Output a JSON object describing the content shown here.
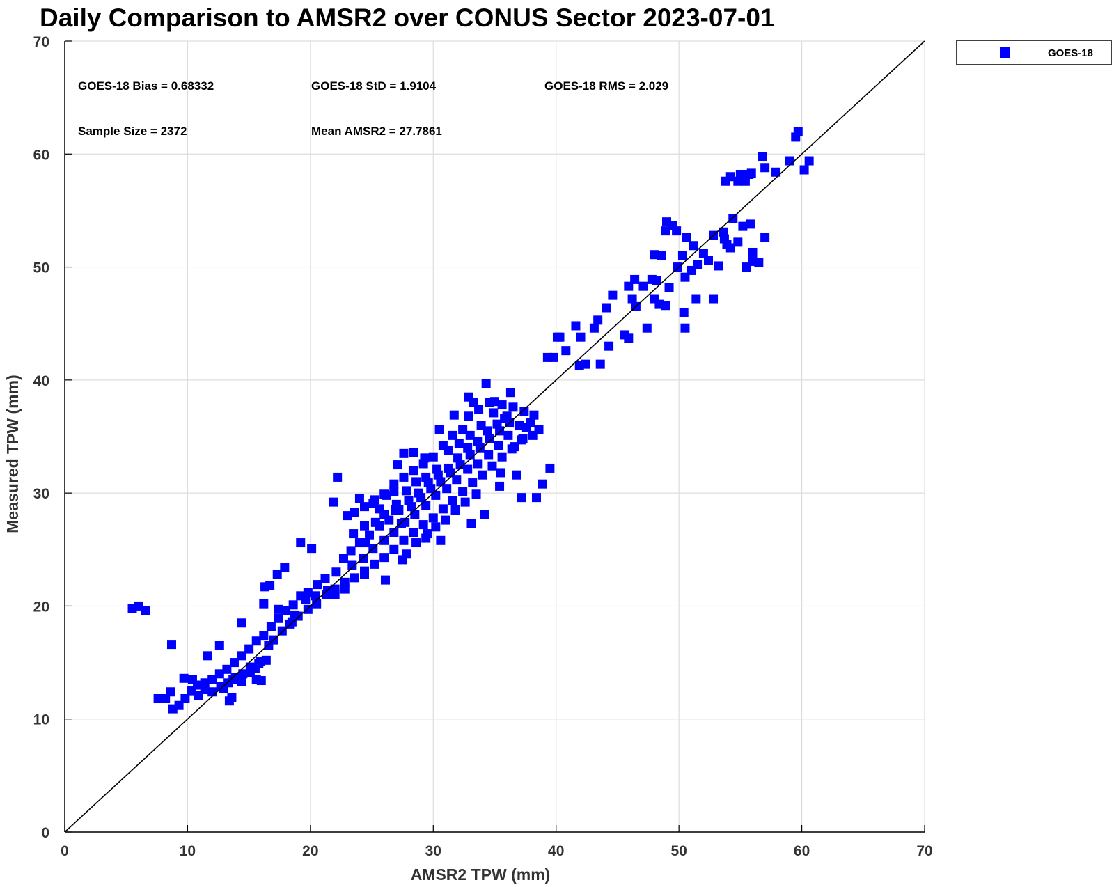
{
  "chart_data": {
    "type": "scatter",
    "title": "Daily Comparison to AMSR2 over CONUS Sector 2023-07-01",
    "xlabel": "AMSR2 TPW (mm)",
    "ylabel": "Measured TPW (mm)",
    "xlim": [
      0,
      70
    ],
    "ylim": [
      0,
      70
    ],
    "xticks": [
      "0",
      "10",
      "20",
      "30",
      "40",
      "50",
      "60",
      "70"
    ],
    "yticks": [
      "0",
      "10",
      "20",
      "30",
      "40",
      "50",
      "60",
      "70"
    ],
    "grid": true,
    "legend_position": "outside-top-right",
    "reference_line": "1:1",
    "stats": [
      "GOES-18 Bias = 0.68332",
      "GOES-18 StD = 1.9104",
      "GOES-18 RMS = 2.029",
      "Sample Size = 2372",
      "Mean AMSR2 = 27.7861"
    ],
    "series": [
      {
        "name": "GOES-18",
        "color": "#0000ff",
        "marker": "square",
        "points": [
          [
            5.5,
            19.8
          ],
          [
            6.0,
            20.0
          ],
          [
            6.6,
            19.6
          ],
          [
            8.7,
            16.6
          ],
          [
            7.6,
            11.8
          ],
          [
            8.2,
            11.8
          ],
          [
            8.6,
            12.4
          ],
          [
            8.8,
            10.9
          ],
          [
            9.3,
            11.2
          ],
          [
            9.8,
            11.8
          ],
          [
            9.7,
            13.6
          ],
          [
            10.4,
            13.5
          ],
          [
            11.6,
            15.6
          ],
          [
            12.6,
            16.5
          ],
          [
            13.4,
            11.6
          ],
          [
            13.6,
            11.9
          ],
          [
            14.4,
            18.5
          ],
          [
            15.5,
            14.5
          ],
          [
            15.6,
            13.5
          ],
          [
            16.0,
            13.4
          ],
          [
            16.2,
            20.2
          ],
          [
            16.3,
            21.7
          ],
          [
            16.7,
            21.8
          ],
          [
            17.3,
            22.8
          ],
          [
            17.9,
            23.4
          ],
          [
            18.5,
            18.6
          ],
          [
            19.2,
            25.6
          ],
          [
            20.1,
            25.1
          ],
          [
            21.9,
            29.2
          ],
          [
            22.2,
            31.4
          ],
          [
            23.6,
            28.3
          ],
          [
            24.0,
            29.5
          ],
          [
            24.5,
            25.6
          ],
          [
            25.1,
            29.1
          ],
          [
            25.6,
            28.6
          ],
          [
            26.2,
            29.8
          ],
          [
            26.8,
            30.1
          ],
          [
            27.1,
            32.5
          ],
          [
            27.6,
            33.5
          ],
          [
            28.4,
            33.6
          ],
          [
            29.3,
            33.1
          ],
          [
            30.5,
            35.6
          ],
          [
            31.7,
            36.9
          ],
          [
            32.9,
            38.5
          ],
          [
            33.3,
            38.0
          ],
          [
            34.3,
            39.7
          ],
          [
            35.0,
            38.1
          ],
          [
            35.6,
            37.8
          ],
          [
            36.3,
            38.9
          ],
          [
            37.4,
            37.2
          ],
          [
            37.9,
            36.2
          ],
          [
            38.6,
            35.6
          ],
          [
            38.1,
            35.1
          ],
          [
            37.3,
            34.8
          ],
          [
            36.6,
            34.1
          ],
          [
            35.5,
            31.8
          ],
          [
            36.8,
            31.6
          ],
          [
            35.4,
            30.6
          ],
          [
            37.2,
            29.6
          ],
          [
            38.4,
            29.6
          ],
          [
            38.9,
            30.8
          ],
          [
            39.5,
            32.2
          ],
          [
            34.2,
            28.1
          ],
          [
            33.1,
            27.3
          ],
          [
            30.6,
            25.8
          ],
          [
            29.5,
            26.4
          ],
          [
            27.5,
            24.1
          ],
          [
            26.1,
            22.3
          ],
          [
            24.4,
            22.8
          ],
          [
            22.8,
            21.5
          ],
          [
            22.0,
            21.0
          ],
          [
            21.4,
            21.4
          ],
          [
            20.4,
            20.9
          ],
          [
            19.6,
            20.6
          ],
          [
            18.7,
            19.2
          ],
          [
            17.4,
            19.7
          ],
          [
            16.6,
            16.5
          ],
          [
            15.9,
            15.1
          ],
          [
            15.1,
            14.6
          ],
          [
            14.4,
            13.3
          ],
          [
            13.7,
            13.5
          ],
          [
            12.9,
            12.7
          ],
          [
            12.0,
            12.4
          ],
          [
            11.4,
            12.6
          ],
          [
            10.9,
            12.1
          ],
          [
            10.3,
            12.5
          ],
          [
            39.3,
            42.0
          ],
          [
            39.8,
            42.0
          ],
          [
            40.1,
            43.8
          ],
          [
            40.3,
            43.8
          ],
          [
            40.8,
            42.6
          ],
          [
            41.6,
            44.8
          ],
          [
            41.9,
            41.3
          ],
          [
            42.4,
            41.4
          ],
          [
            42.0,
            43.8
          ],
          [
            43.1,
            44.6
          ],
          [
            43.4,
            45.3
          ],
          [
            43.6,
            41.4
          ],
          [
            44.1,
            46.4
          ],
          [
            44.6,
            47.5
          ],
          [
            44.3,
            43.0
          ],
          [
            45.6,
            44.0
          ],
          [
            45.9,
            43.7
          ],
          [
            45.9,
            48.3
          ],
          [
            46.2,
            47.2
          ],
          [
            46.5,
            46.5
          ],
          [
            46.4,
            48.9
          ],
          [
            47.1,
            48.3
          ],
          [
            47.4,
            44.6
          ],
          [
            47.8,
            48.9
          ],
          [
            48.2,
            48.8
          ],
          [
            48.0,
            51.1
          ],
          [
            48.6,
            51.0
          ],
          [
            48.9,
            53.2
          ],
          [
            49.0,
            54.0
          ],
          [
            49.5,
            53.7
          ],
          [
            49.8,
            53.2
          ],
          [
            48.4,
            46.7
          ],
          [
            48.0,
            47.2
          ],
          [
            48.9,
            46.6
          ],
          [
            49.2,
            48.2
          ],
          [
            49.9,
            50.0
          ],
          [
            50.3,
            51.0
          ],
          [
            50.5,
            49.1
          ],
          [
            50.4,
            46.0
          ],
          [
            50.5,
            44.6
          ],
          [
            51.0,
            49.7
          ],
          [
            50.6,
            52.6
          ],
          [
            51.2,
            51.9
          ],
          [
            51.5,
            50.2
          ],
          [
            51.4,
            47.2
          ],
          [
            52.0,
            51.2
          ],
          [
            52.4,
            50.6
          ],
          [
            52.8,
            52.8
          ],
          [
            52.8,
            47.2
          ],
          [
            53.2,
            50.1
          ],
          [
            53.6,
            53.1
          ],
          [
            53.9,
            52.0
          ],
          [
            53.7,
            52.5
          ],
          [
            54.2,
            51.7
          ],
          [
            54.4,
            54.3
          ],
          [
            54.8,
            52.2
          ],
          [
            55.2,
            53.6
          ],
          [
            55.5,
            50.0
          ],
          [
            55.8,
            53.8
          ],
          [
            56.0,
            50.5
          ],
          [
            56.0,
            51.3
          ],
          [
            56.5,
            50.4
          ],
          [
            57.0,
            52.6
          ],
          [
            53.8,
            57.6
          ],
          [
            54.2,
            58.0
          ],
          [
            54.8,
            57.6
          ],
          [
            55.4,
            57.6
          ],
          [
            55.0,
            58.2
          ],
          [
            55.7,
            58.2
          ],
          [
            55.9,
            58.3
          ],
          [
            56.8,
            59.8
          ],
          [
            57.0,
            58.8
          ],
          [
            57.9,
            58.4
          ],
          [
            59.0,
            59.4
          ],
          [
            59.5,
            61.5
          ],
          [
            59.7,
            62.0
          ],
          [
            60.2,
            58.6
          ],
          [
            60.6,
            59.4
          ],
          [
            23.0,
            28.0
          ],
          [
            23.5,
            26.4
          ],
          [
            24.4,
            27.1
          ],
          [
            25.3,
            27.4
          ],
          [
            26.0,
            28.1
          ],
          [
            26.9,
            28.5
          ],
          [
            27.8,
            30.2
          ],
          [
            28.6,
            31.0
          ],
          [
            29.4,
            31.4
          ],
          [
            30.3,
            32.1
          ],
          [
            31.2,
            33.8
          ],
          [
            32.1,
            34.4
          ],
          [
            33.0,
            35.1
          ],
          [
            33.9,
            36.0
          ],
          [
            34.9,
            37.1
          ],
          [
            35.8,
            36.6
          ],
          [
            36.5,
            37.6
          ],
          [
            22.1,
            23.0
          ],
          [
            22.7,
            24.2
          ],
          [
            23.3,
            24.9
          ],
          [
            24.0,
            25.6
          ],
          [
            24.8,
            26.3
          ],
          [
            25.6,
            27.1
          ],
          [
            26.4,
            27.6
          ],
          [
            27.2,
            28.5
          ],
          [
            28.0,
            29.3
          ],
          [
            28.8,
            30.0
          ],
          [
            29.6,
            30.9
          ],
          [
            30.4,
            31.6
          ],
          [
            31.2,
            32.2
          ],
          [
            32.0,
            33.1
          ],
          [
            32.8,
            34.0
          ],
          [
            33.6,
            34.6
          ],
          [
            34.4,
            35.5
          ],
          [
            35.2,
            36.1
          ],
          [
            36.0,
            36.8
          ],
          [
            23.4,
            23.6
          ],
          [
            24.3,
            24.2
          ],
          [
            25.1,
            25.1
          ],
          [
            26.0,
            25.8
          ],
          [
            26.8,
            26.5
          ],
          [
            27.7,
            27.4
          ],
          [
            28.5,
            28.1
          ],
          [
            29.4,
            28.9
          ],
          [
            30.2,
            29.8
          ],
          [
            31.1,
            30.4
          ],
          [
            31.9,
            31.2
          ],
          [
            32.8,
            32.1
          ],
          [
            33.6,
            32.6
          ],
          [
            34.5,
            33.4
          ],
          [
            35.3,
            34.2
          ],
          [
            36.1,
            35.1
          ],
          [
            21.2,
            22.4
          ],
          [
            20.6,
            21.9
          ],
          [
            19.8,
            21.2
          ],
          [
            19.2,
            20.9
          ],
          [
            18.6,
            20.1
          ],
          [
            18.0,
            19.6
          ],
          [
            17.4,
            18.9
          ],
          [
            16.8,
            18.2
          ],
          [
            16.2,
            17.4
          ],
          [
            15.6,
            16.9
          ],
          [
            15.0,
            16.2
          ],
          [
            14.4,
            15.6
          ],
          [
            13.8,
            15.0
          ],
          [
            13.2,
            14.4
          ],
          [
            12.6,
            14.0
          ],
          [
            12.0,
            13.5
          ],
          [
            11.4,
            13.2
          ],
          [
            10.8,
            13.0
          ],
          [
            16.4,
            15.2
          ],
          [
            15.8,
            14.9
          ],
          [
            15.1,
            14.1
          ],
          [
            14.5,
            14.0
          ],
          [
            13.9,
            13.7
          ],
          [
            13.3,
            13.2
          ],
          [
            12.7,
            12.9
          ],
          [
            17.0,
            17.0
          ],
          [
            17.7,
            17.8
          ],
          [
            18.3,
            18.4
          ],
          [
            19.0,
            19.1
          ],
          [
            19.8,
            19.7
          ],
          [
            20.5,
            20.2
          ],
          [
            21.3,
            21.0
          ],
          [
            22.0,
            21.5
          ],
          [
            22.8,
            22.1
          ],
          [
            30.8,
            34.2
          ],
          [
            31.6,
            35.1
          ],
          [
            32.4,
            35.6
          ],
          [
            32.9,
            36.8
          ],
          [
            33.7,
            37.4
          ],
          [
            34.6,
            38.0
          ],
          [
            30.0,
            33.2
          ],
          [
            29.2,
            32.6
          ],
          [
            28.4,
            32.0
          ],
          [
            27.6,
            31.4
          ],
          [
            26.8,
            30.8
          ],
          [
            26.0,
            29.9
          ],
          [
            25.2,
            29.4
          ],
          [
            24.4,
            28.8
          ],
          [
            31.6,
            29.3
          ],
          [
            32.4,
            30.1
          ],
          [
            33.2,
            30.9
          ],
          [
            34.0,
            31.6
          ],
          [
            34.8,
            32.4
          ],
          [
            35.6,
            33.2
          ],
          [
            36.4,
            33.9
          ],
          [
            37.2,
            34.7
          ],
          [
            30.8,
            28.6
          ],
          [
            30.0,
            27.8
          ],
          [
            29.2,
            27.2
          ],
          [
            28.4,
            26.5
          ],
          [
            27.6,
            25.8
          ],
          [
            26.8,
            25.0
          ],
          [
            26.0,
            24.3
          ],
          [
            25.2,
            23.7
          ],
          [
            24.4,
            23.1
          ],
          [
            23.6,
            22.5
          ],
          [
            27.0,
            29.0
          ],
          [
            27.4,
            27.3
          ],
          [
            28.2,
            28.8
          ],
          [
            29.0,
            29.6
          ],
          [
            29.8,
            30.4
          ],
          [
            30.6,
            31.0
          ],
          [
            31.4,
            31.8
          ],
          [
            32.2,
            32.5
          ],
          [
            33.0,
            33.4
          ],
          [
            33.8,
            34.0
          ],
          [
            34.6,
            34.8
          ],
          [
            35.4,
            35.5
          ],
          [
            36.2,
            36.2
          ],
          [
            37.0,
            36.0
          ],
          [
            37.6,
            35.8
          ],
          [
            38.2,
            36.9
          ],
          [
            33.5,
            29.9
          ],
          [
            32.6,
            29.2
          ],
          [
            31.8,
            28.5
          ],
          [
            31.0,
            27.6
          ],
          [
            30.2,
            27.0
          ],
          [
            29.4,
            26.0
          ],
          [
            28.6,
            25.6
          ],
          [
            27.8,
            24.6
          ]
        ]
      }
    ]
  }
}
